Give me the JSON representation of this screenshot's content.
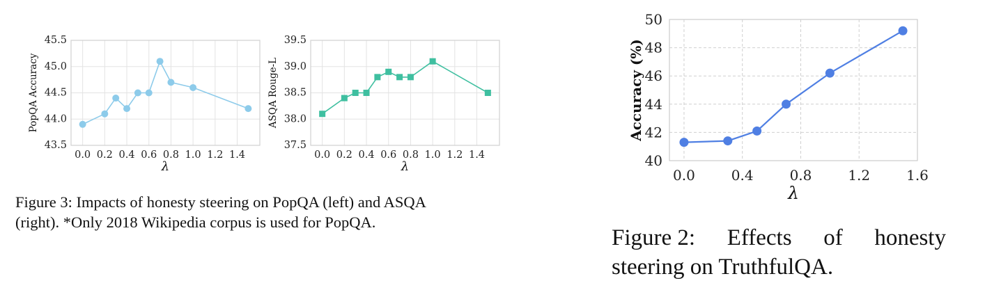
{
  "chart_data": [
    {
      "type": "line",
      "title": "",
      "xlabel": "λ",
      "ylabel": "PopQA Accuracy",
      "xlim": [
        0.0,
        1.5
      ],
      "ylim": [
        43.5,
        45.5
      ],
      "xticks": [
        0.0,
        0.2,
        0.4,
        0.6,
        0.8,
        1.0,
        1.2,
        1.4
      ],
      "xtick_labels": [
        "0.0",
        "0.2",
        "0.4",
        "0.6",
        "0.8",
        "1.0",
        "1.2",
        "1.4"
      ],
      "yticks": [
        43.5,
        44.0,
        44.5,
        45.0,
        45.5
      ],
      "ytick_labels": [
        "43.5",
        "44.0",
        "44.5",
        "45.0",
        "45.5"
      ],
      "grid": true,
      "color": "#8dcbea",
      "marker": "circle",
      "series": [
        {
          "x": [
            0.0,
            0.2,
            0.3,
            0.4,
            0.5,
            0.6,
            0.7,
            0.8,
            1.0,
            1.5
          ],
          "y": [
            43.9,
            44.1,
            44.4,
            44.2,
            44.5,
            44.5,
            45.1,
            44.7,
            44.6,
            44.2
          ]
        }
      ]
    },
    {
      "type": "line",
      "title": "",
      "xlabel": "λ",
      "ylabel": "ASQA Rouge-L",
      "xlim": [
        0.0,
        1.5
      ],
      "ylim": [
        37.5,
        39.5
      ],
      "xticks": [
        0.0,
        0.2,
        0.4,
        0.6,
        0.8,
        1.0,
        1.2,
        1.4
      ],
      "xtick_labels": [
        "0.0",
        "0.2",
        "0.4",
        "0.6",
        "0.8",
        "1.0",
        "1.2",
        "1.4"
      ],
      "yticks": [
        37.5,
        38.0,
        38.5,
        39.0,
        39.5
      ],
      "ytick_labels": [
        "37.5",
        "38.0",
        "38.5",
        "39.0",
        "39.5"
      ],
      "grid": true,
      "color": "#3fbfa0",
      "marker": "square",
      "series": [
        {
          "x": [
            0.0,
            0.2,
            0.3,
            0.4,
            0.5,
            0.6,
            0.7,
            0.8,
            1.0,
            1.5
          ],
          "y": [
            38.1,
            38.4,
            38.5,
            38.5,
            38.8,
            38.9,
            38.8,
            38.8,
            39.1,
            38.5
          ]
        }
      ]
    },
    {
      "type": "line",
      "title": "",
      "xlabel": "λ",
      "ylabel": "Accuracy (%)",
      "xlim": [
        -0.1,
        1.6
      ],
      "ylim": [
        40,
        50
      ],
      "xticks": [
        0.0,
        0.4,
        0.8,
        1.2,
        1.6
      ],
      "xtick_labels": [
        "0.0",
        "0.4",
        "0.8",
        "1.2",
        "1.6"
      ],
      "yticks": [
        40,
        42,
        44,
        46,
        48,
        50
      ],
      "ytick_labels": [
        "40",
        "42",
        "44",
        "46",
        "48",
        "50"
      ],
      "grid": true,
      "color": "#4f7fe3",
      "marker": "circle",
      "series": [
        {
          "x": [
            0.0,
            0.3,
            0.5,
            0.7,
            1.0,
            1.5
          ],
          "y": [
            41.3,
            41.4,
            42.1,
            44.0,
            46.2,
            49.2
          ]
        }
      ]
    }
  ],
  "captions": {
    "left_line1": "Figure 3: Impacts of honesty steering on PopQA (left) and ASQA",
    "left_line2": "(right). *Only 2018 Wikipedia corpus is used for PopQA.",
    "right_line1_a": "Figure 2:",
    "right_line1_b": "Effects",
    "right_line1_c": "of",
    "right_line1_d": "honesty",
    "right_line2": "steering on TruthfulQA."
  }
}
